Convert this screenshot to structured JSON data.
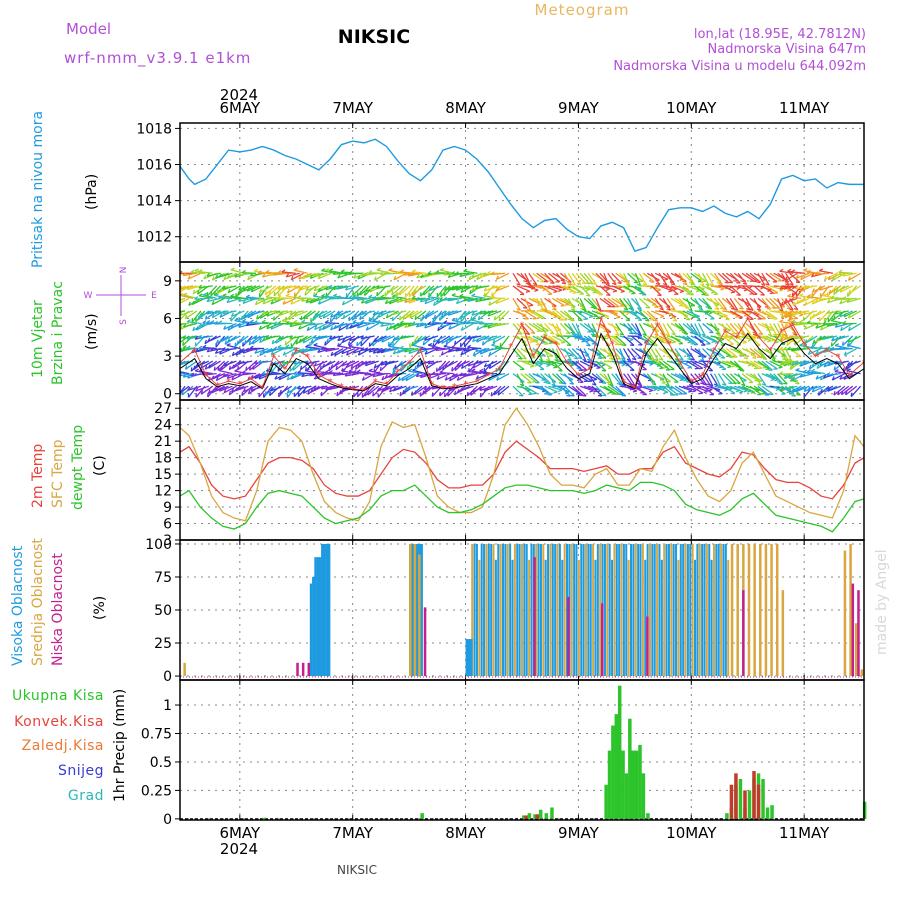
{
  "header": {
    "model_label": "Model",
    "model_name": "wrf-nmm_v3.9.1  e1km",
    "title": "NIKSIC",
    "subtitle": "Meteogram",
    "coords": "lon,lat (18.95E, 42.7812N)",
    "elevation": "Nadmorska Visina 647m",
    "model_elevation": "Nadmorska Visina u modelu 644.092m",
    "footer_station": "NIKSIC",
    "watermark": "made by Angel"
  },
  "time_axis": {
    "year": "2024",
    "day_labels": [
      "6MAY",
      "7MAY",
      "8MAY",
      "9MAY",
      "10MAY",
      "11MAY"
    ],
    "range_days": [
      -0.53,
      5.53
    ]
  },
  "colors": {
    "pressure": "#1e9be0",
    "temp2m": "#e8433a",
    "sfc": "#d9a640",
    "dewpt": "#2cc42a",
    "high_cloud": "#1e9be0",
    "mid_cloud": "#d9a640",
    "low_cloud": "#c21f8f",
    "total_precip": "#2cc42a",
    "conv_precip": "#c23a2a"
  },
  "chart_data": [
    {
      "type": "line",
      "title": "",
      "ylabel": "Pritisak na nivou mora",
      "unit": "(hPa)",
      "ylim": [
        1010.6,
        1018.3
      ],
      "yticks": [
        1012,
        1014,
        1016,
        1018
      ],
      "grid": true,
      "series": [
        {
          "name": "Pritisak",
          "color_key": "pressure",
          "x": [
            -0.53,
            -0.45,
            -0.4,
            -0.3,
            -0.2,
            -0.1,
            0.0,
            0.1,
            0.2,
            0.3,
            0.4,
            0.5,
            0.6,
            0.7,
            0.8,
            0.9,
            1.0,
            1.1,
            1.2,
            1.3,
            1.4,
            1.5,
            1.6,
            1.7,
            1.8,
            1.9,
            2.0,
            2.1,
            2.2,
            2.3,
            2.4,
            2.5,
            2.6,
            2.7,
            2.8,
            2.9,
            3.0,
            3.1,
            3.2,
            3.3,
            3.4,
            3.5,
            3.6,
            3.7,
            3.8,
            3.9,
            4.0,
            4.1,
            4.2,
            4.3,
            4.4,
            4.5,
            4.6,
            4.7,
            4.8,
            4.9,
            5.0,
            5.1,
            5.2,
            5.3,
            5.4,
            5.53
          ],
          "y": [
            1015.9,
            1015.2,
            1014.9,
            1015.2,
            1016.0,
            1016.8,
            1016.7,
            1016.8,
            1017.0,
            1016.8,
            1016.5,
            1016.3,
            1016.0,
            1015.7,
            1016.3,
            1017.1,
            1017.3,
            1017.2,
            1017.4,
            1017.0,
            1016.2,
            1015.5,
            1015.1,
            1015.7,
            1016.8,
            1017.0,
            1016.8,
            1016.3,
            1015.6,
            1014.7,
            1013.8,
            1013.0,
            1012.5,
            1012.9,
            1013.0,
            1012.4,
            1012.0,
            1011.9,
            1012.6,
            1012.8,
            1012.5,
            1011.2,
            1011.4,
            1012.5,
            1013.5,
            1013.6,
            1013.6,
            1013.4,
            1013.7,
            1013.3,
            1013.1,
            1013.4,
            1013.0,
            1013.8,
            1015.2,
            1015.4,
            1015.1,
            1015.2,
            1014.7,
            1015.0,
            1014.9,
            1014.9
          ]
        }
      ]
    },
    {
      "type": "line",
      "title": "",
      "ylabel": "10m Vjetar Brzina i Pravac",
      "unit": "(m/s)",
      "ylim": [
        -0.5,
        10.5
      ],
      "yticks": [
        0,
        3,
        6,
        9
      ],
      "grid": true,
      "direction_key": {
        "top": "N",
        "bottom": "S",
        "left": "W",
        "right": "E"
      },
      "series": [
        {
          "name": "Brzina",
          "color_key": "wind",
          "x": [
            -0.53,
            -0.4,
            -0.3,
            -0.2,
            -0.1,
            0.0,
            0.1,
            0.2,
            0.3,
            0.4,
            0.5,
            0.6,
            0.7,
            0.8,
            0.9,
            1.0,
            1.1,
            1.2,
            1.3,
            1.4,
            1.5,
            1.6,
            1.7,
            1.8,
            1.9,
            2.0,
            2.1,
            2.2,
            2.3,
            2.4,
            2.5,
            2.6,
            2.7,
            2.8,
            2.9,
            3.0,
            3.1,
            3.2,
            3.3,
            3.4,
            3.5,
            3.6,
            3.7,
            3.8,
            3.9,
            4.0,
            4.1,
            4.2,
            4.3,
            4.4,
            4.5,
            4.6,
            4.7,
            4.8,
            4.9,
            5.0,
            5.1,
            5.2,
            5.3,
            5.4,
            5.53
          ],
          "y": [
            2.5,
            3.5,
            1.5,
            0.7,
            1.0,
            0.8,
            1.2,
            0.5,
            3.0,
            2.0,
            3.5,
            3.0,
            1.5,
            1.0,
            0.6,
            0.4,
            0.3,
            1.0,
            0.8,
            1.8,
            2.5,
            3.5,
            0.8,
            0.5,
            0.6,
            0.8,
            1.0,
            1.5,
            2.0,
            3.8,
            5.5,
            3.0,
            4.5,
            4.0,
            2.5,
            1.5,
            2.0,
            6.0,
            4.0,
            1.0,
            0.5,
            4.0,
            5.5,
            4.0,
            2.5,
            1.0,
            1.5,
            3.5,
            5.0,
            4.5,
            6.0,
            4.5,
            3.5,
            5.0,
            5.5,
            4.0,
            3.0,
            3.5,
            3.0,
            1.5,
            2.5
          ]
        }
      ]
    },
    {
      "type": "line",
      "title": "",
      "ylabel": "2m Temp / SFC Temp / dewpt Temp",
      "unit": "(C)",
      "ylim": [
        3,
        28.5
      ],
      "yticks": [
        3,
        6,
        9,
        12,
        15,
        18,
        21,
        24,
        27
      ],
      "grid": true,
      "series": [
        {
          "name": "2m Temp",
          "color_key": "temp2m",
          "x": [
            -0.53,
            -0.45,
            -0.35,
            -0.25,
            -0.15,
            -0.05,
            0.05,
            0.15,
            0.25,
            0.35,
            0.45,
            0.55,
            0.65,
            0.75,
            0.85,
            0.95,
            1.05,
            1.15,
            1.25,
            1.35,
            1.45,
            1.55,
            1.65,
            1.75,
            1.85,
            1.95,
            2.05,
            2.15,
            2.25,
            2.35,
            2.45,
            2.55,
            2.65,
            2.75,
            2.85,
            2.95,
            3.05,
            3.15,
            3.25,
            3.35,
            3.45,
            3.55,
            3.65,
            3.75,
            3.85,
            3.95,
            4.05,
            4.15,
            4.25,
            4.35,
            4.45,
            4.55,
            4.65,
            4.75,
            4.85,
            4.95,
            5.05,
            5.15,
            5.25,
            5.35,
            5.45,
            5.53
          ],
          "y": [
            19,
            20,
            17,
            13,
            11,
            10.5,
            11,
            14,
            17,
            18,
            18,
            17.5,
            16,
            13,
            11.5,
            11,
            11,
            12,
            15,
            18,
            19.5,
            19,
            17,
            14,
            12.5,
            12.5,
            13,
            13,
            15,
            19,
            21,
            19.5,
            18,
            16,
            16,
            16,
            15.5,
            16,
            16.5,
            15,
            15,
            16,
            16,
            19,
            20,
            17,
            16,
            15,
            14.5,
            16,
            19,
            18.5,
            16,
            14,
            13.5,
            13.5,
            12.5,
            11,
            10.5,
            13,
            17,
            18
          ]
        },
        {
          "name": "SFC Temp",
          "color_key": "sfc",
          "x": [
            -0.53,
            -0.45,
            -0.35,
            -0.25,
            -0.15,
            -0.05,
            0.05,
            0.15,
            0.25,
            0.35,
            0.45,
            0.55,
            0.65,
            0.75,
            0.85,
            0.95,
            1.05,
            1.15,
            1.25,
            1.35,
            1.45,
            1.55,
            1.65,
            1.75,
            1.85,
            1.95,
            2.05,
            2.15,
            2.25,
            2.35,
            2.45,
            2.55,
            2.65,
            2.75,
            2.85,
            2.95,
            3.05,
            3.15,
            3.25,
            3.35,
            3.45,
            3.55,
            3.65,
            3.75,
            3.85,
            3.95,
            4.05,
            4.15,
            4.25,
            4.35,
            4.45,
            4.55,
            4.65,
            4.75,
            4.85,
            4.95,
            5.05,
            5.15,
            5.25,
            5.35,
            5.45,
            5.53
          ],
          "y": [
            23.5,
            22,
            17,
            11,
            8,
            7,
            6.5,
            12,
            21,
            23.5,
            23,
            21,
            15,
            10,
            8,
            7,
            6.5,
            10,
            20,
            24.5,
            23.5,
            24,
            18,
            11,
            9,
            8,
            8,
            9,
            15,
            24,
            27,
            24,
            20,
            15,
            13,
            13,
            12.5,
            15,
            16,
            13,
            13,
            16,
            15.5,
            20,
            23,
            18,
            14,
            11,
            10,
            12,
            17,
            19,
            15,
            11,
            10,
            9,
            8,
            7.5,
            7,
            12,
            22,
            20
          ]
        },
        {
          "name": "dewpt Temp",
          "color_key": "dewpt",
          "x": [
            -0.53,
            -0.45,
            -0.35,
            -0.25,
            -0.15,
            -0.05,
            0.05,
            0.15,
            0.25,
            0.35,
            0.45,
            0.55,
            0.65,
            0.75,
            0.85,
            0.95,
            1.05,
            1.15,
            1.25,
            1.35,
            1.45,
            1.55,
            1.65,
            1.75,
            1.85,
            1.95,
            2.05,
            2.15,
            2.25,
            2.35,
            2.45,
            2.55,
            2.65,
            2.75,
            2.85,
            2.95,
            3.05,
            3.15,
            3.25,
            3.35,
            3.45,
            3.55,
            3.65,
            3.75,
            3.85,
            3.95,
            4.05,
            4.15,
            4.25,
            4.35,
            4.45,
            4.55,
            4.65,
            4.75,
            4.85,
            4.95,
            5.05,
            5.15,
            5.25,
            5.35,
            5.45,
            5.53
          ],
          "y": [
            11,
            12,
            9,
            7,
            5.5,
            5,
            6,
            9,
            11.5,
            12,
            11.5,
            11,
            9,
            7,
            6,
            6.5,
            7,
            8.5,
            11,
            12,
            12,
            13,
            11,
            9,
            8,
            8,
            8.5,
            9.5,
            11,
            12.5,
            13,
            13,
            12.5,
            12,
            12,
            12,
            11.5,
            12,
            13,
            12.5,
            12,
            13.5,
            13.5,
            13,
            12,
            9.5,
            8.5,
            8,
            7.5,
            8.5,
            10.5,
            11.5,
            9.5,
            7.5,
            7,
            6.5,
            6,
            5.5,
            4.5,
            7,
            10,
            10.5
          ]
        }
      ]
    },
    {
      "type": "bar",
      "title": "",
      "ylabel": "Visoka Oblacnost / Srednja Oblacnost / Niska Oblacnost",
      "unit": "(%)",
      "ylim": [
        -3,
        103
      ],
      "yticks": [
        0,
        25,
        50,
        75,
        100
      ],
      "grid": true,
      "series": [
        {
          "name": "Visoka Oblacnost",
          "color_key": "high_cloud",
          "x": [
            0.62,
            0.64,
            0.66,
            0.68,
            0.7,
            0.72,
            0.74,
            0.76,
            0.78,
            1.5,
            1.52,
            1.54,
            1.56,
            1.58,
            1.6,
            2.0,
            2.02,
            2.04
          ],
          "values": [
            70,
            75,
            90,
            90,
            90,
            100,
            100,
            100,
            100,
            100,
            100,
            100,
            100,
            100,
            100,
            28,
            28,
            28
          ]
        },
        {
          "name": "Srednja Oblacnost",
          "color_key": "mid_cloud",
          "x": [
            -0.5,
            1.5,
            1.54,
            1.58,
            4.35,
            4.4,
            4.45,
            4.5,
            4.55,
            4.6,
            4.65,
            4.7,
            4.75,
            4.8,
            5.35,
            5.4,
            5.45,
            5.5
          ],
          "values": [
            10,
            100,
            100,
            92,
            100,
            100,
            100,
            100,
            100,
            100,
            100,
            100,
            100,
            65,
            95,
            100,
            40,
            5
          ]
        },
        {
          "name": "Niska Oblacnost",
          "color_key": "low_cloud",
          "x": [
            0.5,
            0.55,
            0.6,
            1.63,
            2.6,
            2.9,
            3.2,
            3.6,
            4.45,
            5.42,
            5.47
          ],
          "values": [
            10,
            10,
            10,
            52,
            90,
            60,
            55,
            45,
            65,
            70,
            65
          ]
        }
      ],
      "band": {
        "x_start": 2.05,
        "x_end": 4.32,
        "values_range": [
          88,
          100
        ]
      }
    },
    {
      "type": "bar",
      "title": "",
      "ylabel": "1hr Precip",
      "unit": "(mm)",
      "ylim": [
        -0.01,
        1.22
      ],
      "yticks": [
        0,
        0.25,
        0.5,
        0.75,
        1
      ],
      "grid": true,
      "legend": [
        "Ukupna Kisa",
        "Konvek.Kisa",
        "Zaledj.Kisa",
        "Snijeg",
        "Grad"
      ],
      "legend_colors": [
        "#2cc42a",
        "#c23a2a",
        "#ec7a35",
        "#3a3ad6",
        "#2ab8b8"
      ],
      "series": [
        {
          "name": "Ukupna Kisa",
          "color_key": "total_precip",
          "x": [
            0.2,
            1.6,
            2.5,
            2.55,
            2.6,
            2.65,
            2.7,
            2.75,
            3.23,
            3.26,
            3.29,
            3.32,
            3.35,
            3.38,
            3.41,
            3.44,
            3.47,
            3.5,
            3.53,
            3.56,
            3.6,
            4.3,
            4.34,
            4.38,
            4.42,
            4.46,
            4.5,
            4.54,
            4.58,
            4.62,
            4.66,
            4.7,
            5.52
          ],
          "values": [
            0.01,
            0.05,
            0.03,
            0.05,
            0.04,
            0.08,
            0.05,
            0.1,
            0.3,
            0.6,
            0.82,
            0.92,
            1.17,
            0.6,
            0.4,
            0.88,
            0.6,
            0.6,
            0.65,
            0.4,
            0.05,
            0.05,
            0.1,
            0.3,
            0.35,
            0.1,
            0.25,
            0.35,
            0.4,
            0.35,
            0.1,
            0.12,
            0.15
          ]
        },
        {
          "name": "Konvek.Kisa",
          "color_key": "conv_precip",
          "x": [
            2.52,
            2.62,
            4.34,
            4.38,
            4.46,
            4.54,
            4.58
          ],
          "values": [
            0.03,
            0.04,
            0.3,
            0.4,
            0.25,
            0.42,
            0.3
          ]
        }
      ]
    }
  ]
}
